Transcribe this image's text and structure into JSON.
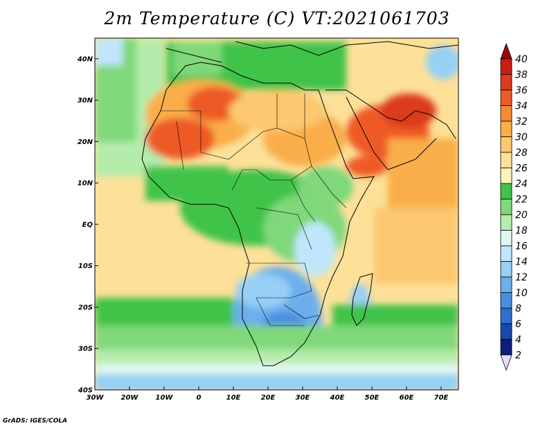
{
  "title": "2m Temperature (C) VT:2021061703",
  "credit": "GrADS: IGES/COLA",
  "map": {
    "lon_range": [
      -30,
      75
    ],
    "lat_range": [
      -40,
      45
    ],
    "lon_ticks": [
      {
        "value": -30,
        "label": "30W"
      },
      {
        "value": -20,
        "label": "20W"
      },
      {
        "value": -10,
        "label": "10W"
      },
      {
        "value": 0,
        "label": "0"
      },
      {
        "value": 10,
        "label": "10E"
      },
      {
        "value": 20,
        "label": "20E"
      },
      {
        "value": 30,
        "label": "30E"
      },
      {
        "value": 40,
        "label": "40E"
      },
      {
        "value": 50,
        "label": "50E"
      },
      {
        "value": 60,
        "label": "60E"
      },
      {
        "value": 70,
        "label": "70E"
      }
    ],
    "lat_ticks": [
      {
        "value": 40,
        "label": "40N"
      },
      {
        "value": 30,
        "label": "30N"
      },
      {
        "value": 20,
        "label": "20N"
      },
      {
        "value": 10,
        "label": "10N"
      },
      {
        "value": 0,
        "label": "EQ"
      },
      {
        "value": -10,
        "label": "10S"
      },
      {
        "value": -20,
        "label": "20S"
      },
      {
        "value": -30,
        "label": "30S"
      },
      {
        "value": -40,
        "label": "40S"
      }
    ]
  },
  "colorbar": {
    "labels": [
      "40",
      "38",
      "36",
      "34",
      "32",
      "30",
      "28",
      "26",
      "24",
      "22",
      "20",
      "18",
      "16",
      "14",
      "12",
      "10",
      "8",
      "6",
      "4",
      "2"
    ],
    "colors": {
      "above_40": "#a0000a",
      "38": "#c81e14",
      "36": "#dc3a1e",
      "34": "#ee5a28",
      "32": "#f58c32",
      "30": "#f9ae48",
      "28": "#fcc870",
      "26": "#fde199",
      "24": "#fff4b8",
      "22": "#3fc34a",
      "20": "#7fd87a",
      "18": "#b5ecab",
      "16": "#e1f8f0",
      "14": "#bfe6fb",
      "12": "#97cff5",
      "10": "#6cafec",
      "8": "#4a8ee0",
      "6": "#2f6fce",
      "4": "#1a48b0",
      "2": "#0c1f7a",
      "below_2": "#e3dcff"
    }
  }
}
